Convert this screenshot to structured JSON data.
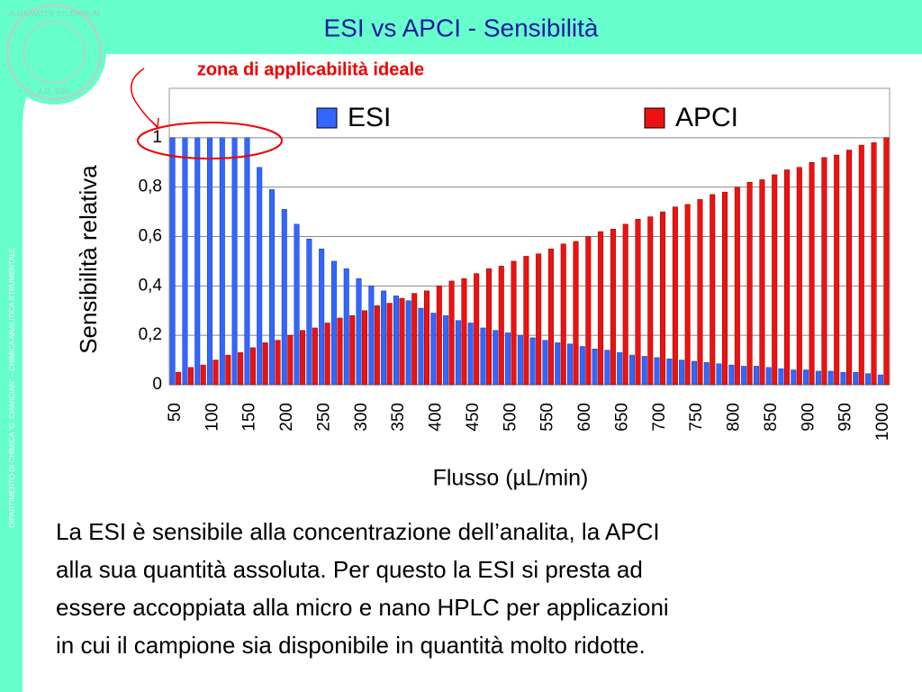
{
  "header": {
    "title": "ESI vs APCI - Sensibilità",
    "sidebar": "DIPARTIMENTO DI CHIMICA “G. CIAMICIAN” – CHIMICA ANALITICA STRUMENTALE",
    "seal_top": "ALMA MATER STUDIORUM",
    "seal_bottom": "A.D. 1088"
  },
  "annotation": "zona di applicabilità ideale",
  "chart_data": {
    "type": "bar",
    "y_label": "Sensibilità relativa",
    "x_label": "Flusso (µL/min)",
    "categories": [
      "50",
      null,
      null,
      "100",
      null,
      null,
      "150",
      null,
      null,
      "200",
      null,
      null,
      "250",
      null,
      null,
      "300",
      null,
      null,
      "350",
      null,
      null,
      "400",
      null,
      null,
      "450",
      null,
      null,
      "500",
      null,
      null,
      "550",
      null,
      null,
      "600",
      null,
      null,
      "650",
      null,
      null,
      "700",
      null,
      null,
      "750",
      null,
      null,
      "800",
      null,
      null,
      "850",
      null,
      null,
      "900",
      null,
      null,
      "950",
      null,
      null,
      "1000"
    ],
    "series": [
      {
        "name": "ESI",
        "color": "#3366ff",
        "values": [
          1,
          1,
          1,
          1,
          1,
          1,
          1,
          0.88,
          0.79,
          0.71,
          0.65,
          0.59,
          0.55,
          0.5,
          0.47,
          0.43,
          0.4,
          0.38,
          0.36,
          0.34,
          0.31,
          0.29,
          0.28,
          0.26,
          0.25,
          0.23,
          0.22,
          0.21,
          0.2,
          0.19,
          0.18,
          0.17,
          0.165,
          0.155,
          0.145,
          0.14,
          0.13,
          0.12,
          0.115,
          0.11,
          0.105,
          0.1,
          0.095,
          0.09,
          0.085,
          0.08,
          0.075,
          0.075,
          0.07,
          0.065,
          0.06,
          0.06,
          0.055,
          0.055,
          0.05,
          0.05,
          0.045,
          0.04
        ]
      },
      {
        "name": "APCI",
        "color": "#ee1111",
        "values": [
          0.05,
          0.07,
          0.08,
          0.1,
          0.12,
          0.13,
          0.15,
          0.17,
          0.18,
          0.2,
          0.22,
          0.23,
          0.25,
          0.27,
          0.28,
          0.3,
          0.32,
          0.33,
          0.35,
          0.37,
          0.38,
          0.4,
          0.42,
          0.43,
          0.45,
          0.47,
          0.48,
          0.5,
          0.52,
          0.53,
          0.55,
          0.57,
          0.58,
          0.6,
          0.62,
          0.63,
          0.65,
          0.67,
          0.68,
          0.7,
          0.72,
          0.73,
          0.75,
          0.77,
          0.78,
          0.8,
          0.82,
          0.83,
          0.85,
          0.87,
          0.88,
          0.9,
          0.92,
          0.93,
          0.95,
          0.97,
          0.98,
          1
        ]
      }
    ],
    "ylim": [
      0,
      1.2
    ],
    "yticks": [
      0,
      {
        "value": 0.2,
        "label": "0,2"
      },
      {
        "value": 0.4,
        "label": "0,4"
      },
      {
        "value": 0.6,
        "label": "0,6"
      },
      {
        "value": 0.8,
        "label": "0,8"
      },
      1
    ],
    "grid": true,
    "legend": "top"
  },
  "body": {
    "lines": [
      "La ESI è sensibile alla concentrazione dell’analita, la APCI",
      "alla sua quantità assoluta. Per questo la ESI si presta ad",
      "essere accoppiata alla micro e nano HPLC per applicazioni",
      "in cui il campione sia disponibile in quantità molto ridotte."
    ]
  }
}
